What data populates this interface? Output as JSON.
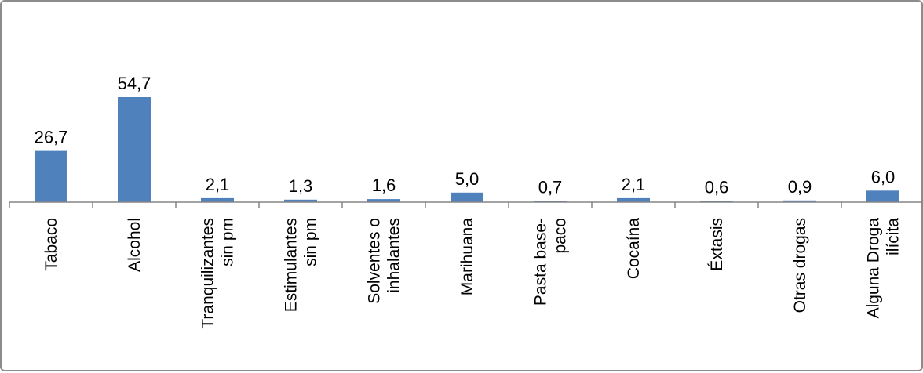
{
  "chart_data": {
    "type": "bar",
    "categories": [
      [
        "Tabaco"
      ],
      [
        "Alcohol"
      ],
      [
        "Tranquilizantes",
        "sin pm"
      ],
      [
        "Estimulantes",
        "sin pm"
      ],
      [
        "Solventes o",
        "inhalantes"
      ],
      [
        "Marihuana"
      ],
      [
        "Pasta base-",
        "paco"
      ],
      [
        "Cocaína"
      ],
      [
        "Éxtasis"
      ],
      [
        "Otras drogas"
      ],
      [
        "Alguna Droga",
        "ilícita"
      ]
    ],
    "values": [
      26.7,
      54.7,
      2.1,
      1.3,
      1.6,
      5.0,
      0.7,
      2.1,
      0.6,
      0.9,
      6.0
    ],
    "value_labels": [
      "26,7",
      "54,7",
      "2,1",
      "1,3",
      "1,6",
      "5,0",
      "0,7",
      "2,1",
      "0,6",
      "0,9",
      "6,0"
    ],
    "title": "",
    "xlabel": "",
    "ylabel": "",
    "ylim": [
      0,
      80
    ],
    "grid": false,
    "legend": "none",
    "colors": {
      "bar": "#4f81bd",
      "axis": "#868686",
      "frame": "#8c8c8c"
    }
  }
}
